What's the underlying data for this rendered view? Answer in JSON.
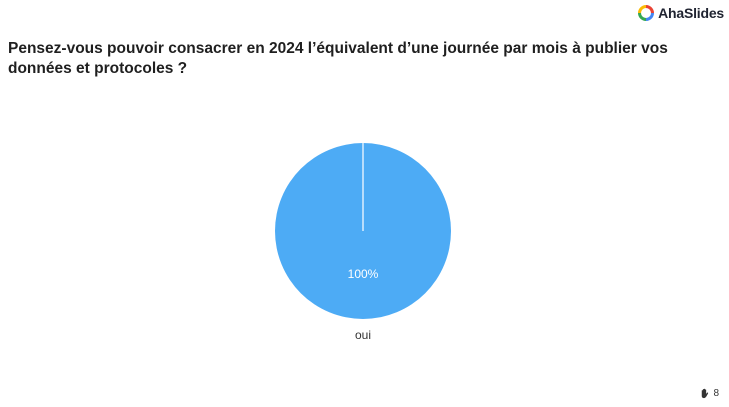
{
  "brand": {
    "name": "AhaSlides",
    "logo_icon": "ahaslides-logo-icon",
    "logo_colors": [
      "#ea4335",
      "#fbbc05",
      "#34a853",
      "#4285f4"
    ]
  },
  "question": {
    "text": "Pensez-vous pouvoir consacrer en 2024 l’équivalent d’une journée par mois à publier vos données et protocoles ?"
  },
  "chart_data": {
    "type": "pie",
    "categories": [
      "oui"
    ],
    "values": [
      100
    ],
    "percent_labels": [
      "100%"
    ],
    "colors": [
      "#4dabf5"
    ]
  },
  "footer": {
    "participant_icon": "raised-hand-icon",
    "participant_count": "8"
  }
}
